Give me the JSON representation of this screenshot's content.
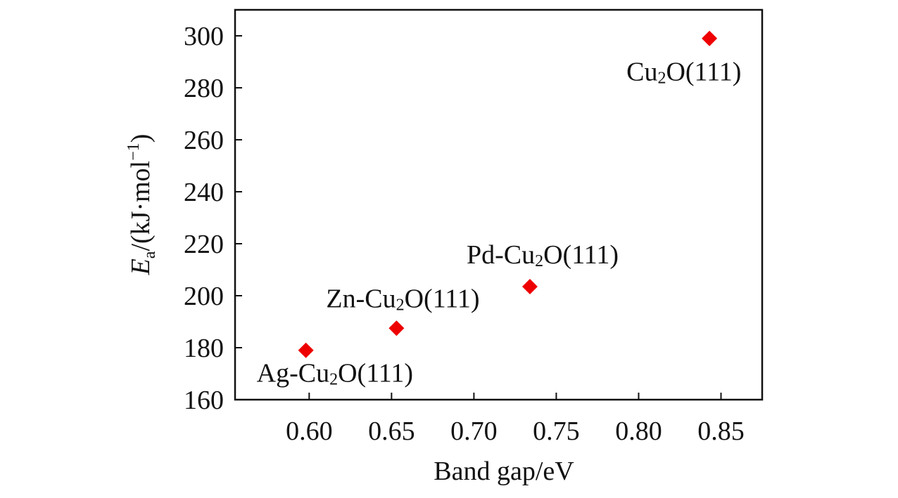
{
  "chart_data": {
    "type": "scatter",
    "xlabel": "Band gap/eV",
    "ylabel": {
      "symbol": "E",
      "symbol_sub": "a",
      "unit": "/(kJ·mol",
      "unit_sup": "−1",
      "close": ")"
    },
    "xlim": [
      0.555,
      0.875
    ],
    "ylim": [
      160,
      310
    ],
    "xticks": [
      0.6,
      0.65,
      0.7,
      0.75,
      0.8,
      0.85
    ],
    "xtick_labels": [
      "0.60",
      "0.65",
      "0.70",
      "0.75",
      "0.80",
      "0.85"
    ],
    "yticks": [
      160,
      180,
      200,
      220,
      240,
      260,
      280,
      300
    ],
    "ytick_labels": [
      "160",
      "180",
      "200",
      "220",
      "240",
      "260",
      "280",
      "300"
    ],
    "marker": "diamond",
    "marker_color": "#ee0000",
    "grid": false,
    "points": [
      {
        "x": 0.598,
        "y": 179,
        "label_pre": "Ag-Cu",
        "label_sub": "2",
        "label_post": "O(111)"
      },
      {
        "x": 0.653,
        "y": 187.5,
        "label_pre": "Zn-Cu",
        "label_sub": "2",
        "label_post": "O(111)"
      },
      {
        "x": 0.734,
        "y": 203.5,
        "label_pre": "Pd-Cu",
        "label_sub": "2",
        "label_post": "O(111)"
      },
      {
        "x": 0.843,
        "y": 299,
        "label_pre": "Cu",
        "label_sub": "2",
        "label_post": "O(111)"
      }
    ]
  }
}
